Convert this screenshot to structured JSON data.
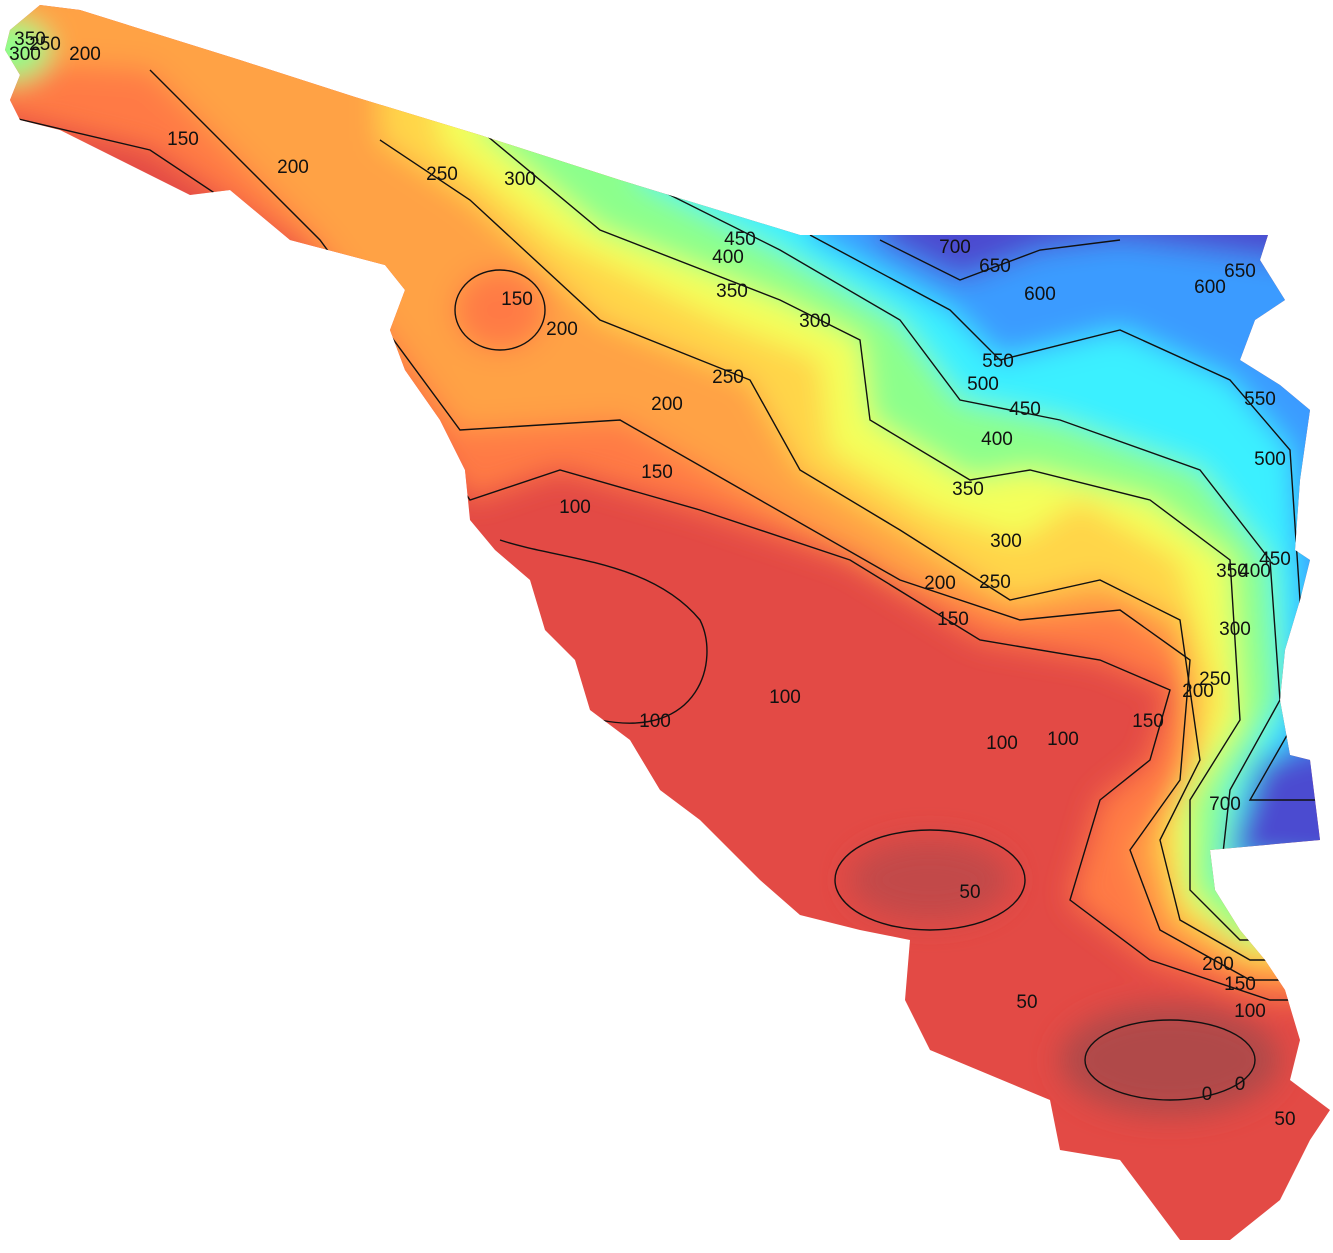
{
  "contour_labels": [
    350,
    300,
    250,
    200,
    150,
    200,
    250,
    300,
    450,
    400,
    350,
    700,
    650,
    600,
    600,
    650,
    150,
    200,
    300,
    250,
    550,
    500,
    450,
    400,
    550,
    500,
    200,
    150,
    350,
    100,
    300,
    250,
    200,
    450,
    400,
    350,
    300,
    150,
    250,
    200,
    100,
    100,
    150,
    100,
    100,
    700,
    50,
    50,
    200,
    150,
    100,
    0,
    0,
    50
  ]
}
